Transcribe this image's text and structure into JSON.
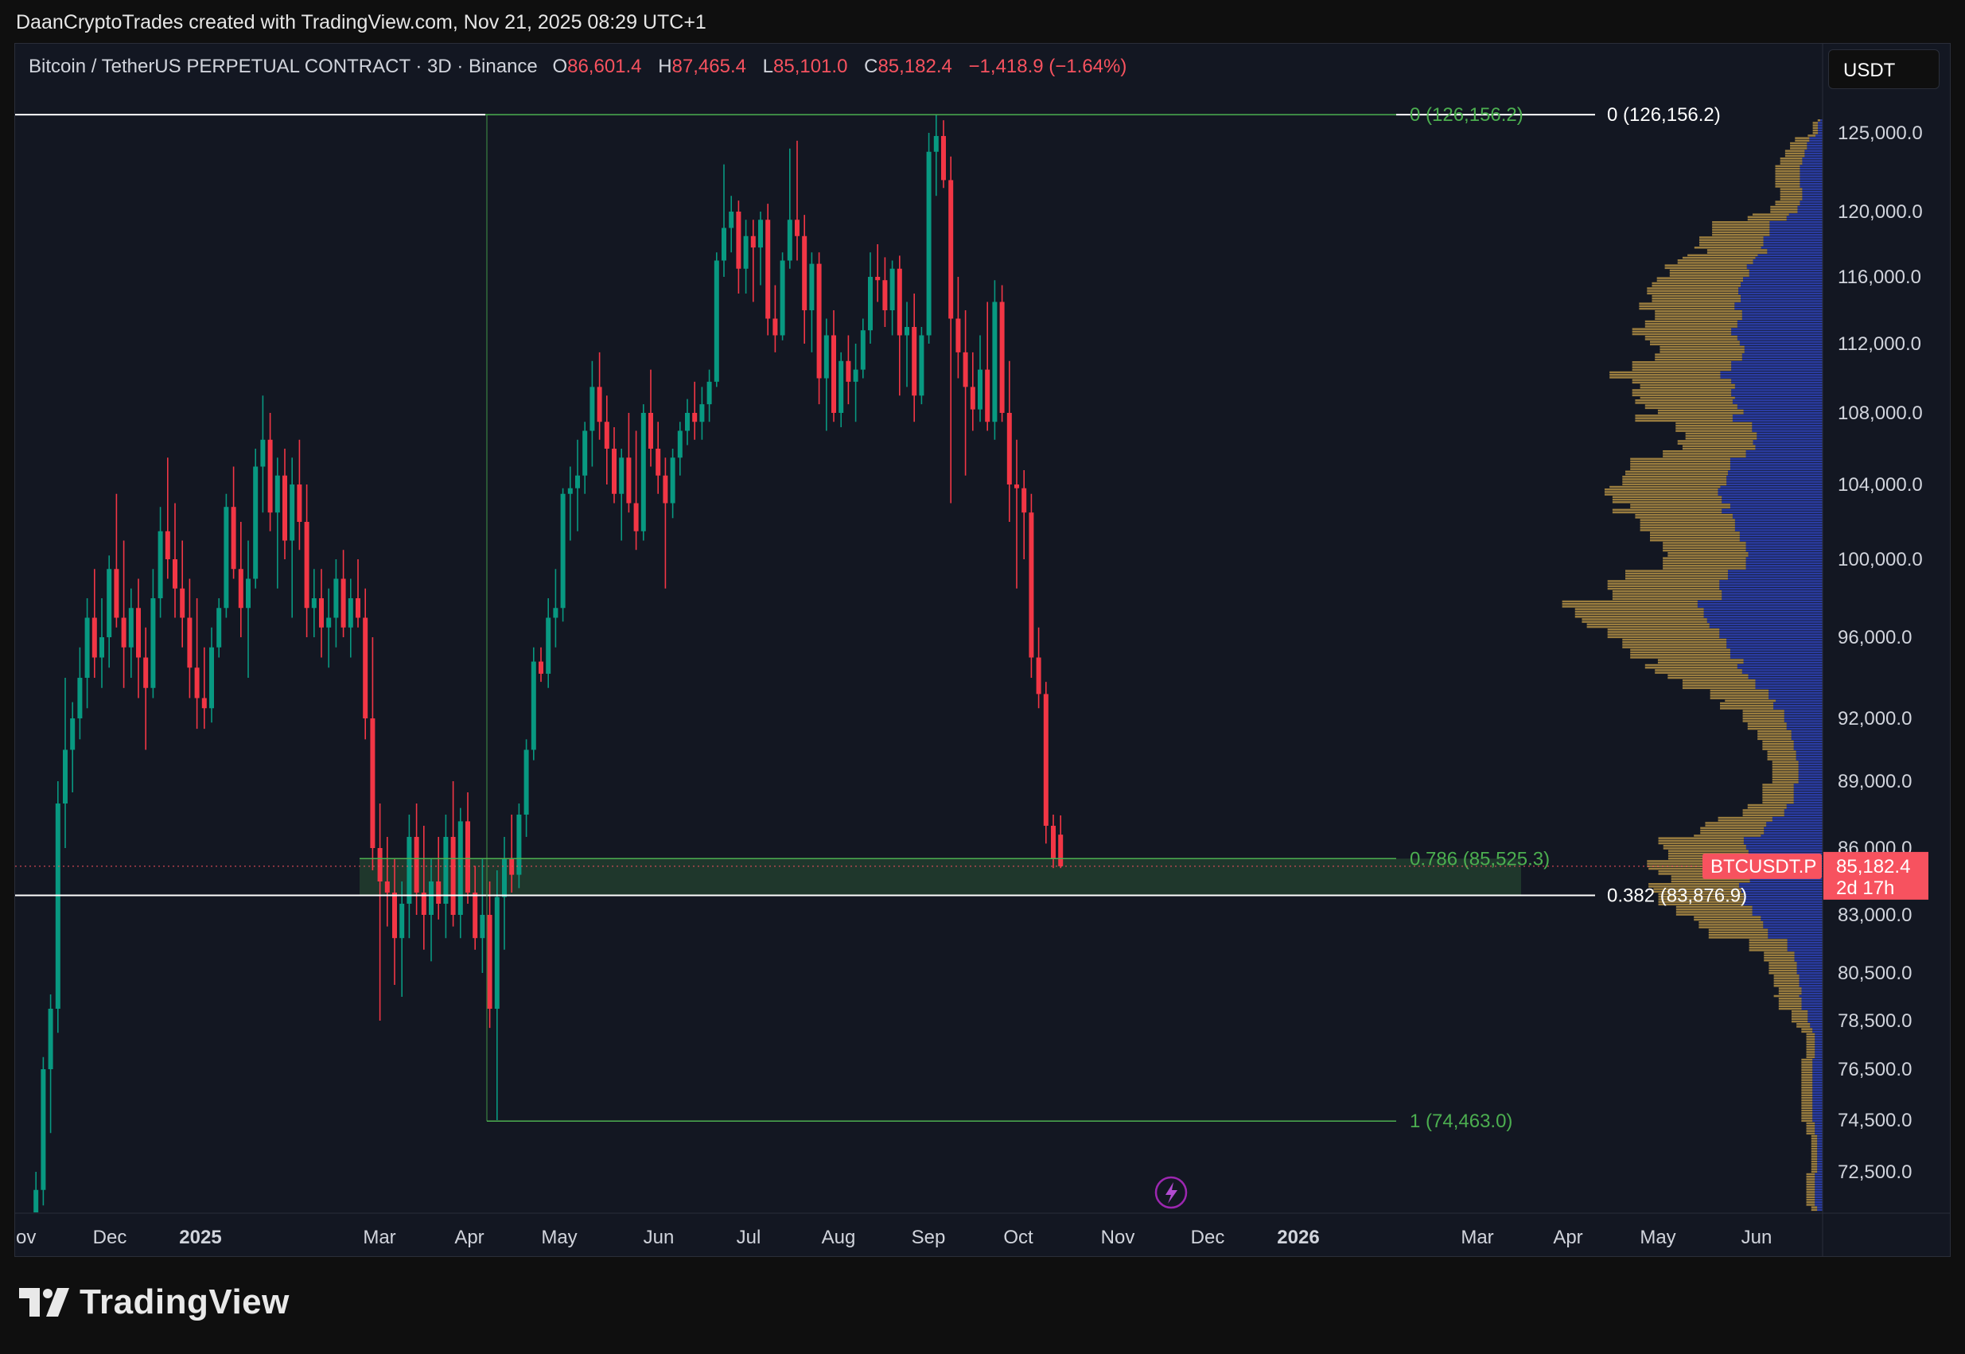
{
  "credit_line": "DaanCryptoTrades created with TradingView.com, Nov 21, 2025 08:29 UTC+1",
  "brand": "TradingView",
  "currency_button": "USDT",
  "symbol_label": "Bitcoin / TetherUS PERPETUAL CONTRACT · 3D · Binance",
  "ohlc": {
    "o_label": "O",
    "o": "86,601.4",
    "h_label": "H",
    "h": "87,465.4",
    "l_label": "L",
    "l": "85,101.0",
    "c_label": "C",
    "c": "85,182.4",
    "change": "−1,418.9 (−1.64%)"
  },
  "colors": {
    "up": "#089981",
    "down": "#f23645",
    "fib": "#4caf50",
    "profile_up": "#c8a04a",
    "profile_down": "#2f43b8",
    "price_tag": "#f7525f"
  },
  "chart_data": {
    "type": "candlestick",
    "timeframe": "3D",
    "ylim": [
      71500,
      127500
    ],
    "y_ticks": [
      "125,000.0",
      "120,000.0",
      "116,000.0",
      "112,000.0",
      "108,000.0",
      "104,000.0",
      "100,000.0",
      "96,000.0",
      "92,000.0",
      "89,000.0",
      "86,000.0",
      "83,000.0",
      "80,500.0",
      "78,500.0",
      "76,500.0",
      "74,500.0",
      "72,500.0"
    ],
    "y_tick_values": [
      125000,
      120000,
      116000,
      112000,
      108000,
      104000,
      100000,
      96000,
      92000,
      89000,
      86000,
      83000,
      80500,
      78500,
      76500,
      74500,
      72500
    ],
    "x_ticks": [
      "ov",
      "Dec",
      "2025",
      "Mar",
      "Apr",
      "May",
      "Jun",
      "Jul",
      "Aug",
      "Sep",
      "Oct",
      "Nov",
      "Dec",
      "2026",
      "Mar",
      "Apr",
      "May",
      "Jun"
    ],
    "x_tick_bold": [
      false,
      false,
      true,
      false,
      false,
      false,
      false,
      false,
      false,
      false,
      false,
      false,
      false,
      true,
      false,
      false,
      false,
      false
    ],
    "current_price": {
      "symbol": "BTCUSDT.P",
      "value": "85,182.4",
      "countdown": "2d 17h",
      "price": 85182.4
    },
    "fib_levels": [
      {
        "label": "0 (126,156.2)",
        "price": 126156.2
      },
      {
        "label": "0.786 (85,525.3)",
        "price": 85525.3
      },
      {
        "label": "1 (74,463.0)",
        "price": 74463.0
      }
    ],
    "other_levels": [
      {
        "label": "0 (126,156.2)",
        "price": 126156.2
      },
      {
        "label": "0.382 (83,876.9)",
        "price": 83876.9
      }
    ],
    "candles": [
      [
        67800,
        69000,
        65000,
        68800
      ],
      [
        68800,
        72500,
        68200,
        71800
      ],
      [
        71800,
        77000,
        71200,
        76500
      ],
      [
        76500,
        79600,
        74000,
        79000
      ],
      [
        79000,
        89000,
        78000,
        88000
      ],
      [
        88000,
        94000,
        86000,
        90500
      ],
      [
        90500,
        92800,
        88500,
        92000
      ],
      [
        92000,
        95500,
        91000,
        94000
      ],
      [
        94000,
        98000,
        92500,
        97000
      ],
      [
        97000,
        99500,
        94000,
        95000
      ],
      [
        95000,
        98000,
        93500,
        96000
      ],
      [
        96000,
        100200,
        94500,
        99500
      ],
      [
        99500,
        103500,
        96500,
        97000
      ],
      [
        97000,
        101000,
        93500,
        95500
      ],
      [
        95500,
        98500,
        94000,
        97500
      ],
      [
        97500,
        99000,
        93000,
        95000
      ],
      [
        95000,
        96500,
        90500,
        93500
      ],
      [
        93500,
        99500,
        93000,
        98000
      ],
      [
        98000,
        102800,
        97000,
        101500
      ],
      [
        101500,
        105500,
        99000,
        100000
      ],
      [
        100000,
        103000,
        97000,
        98500
      ],
      [
        98500,
        101000,
        95500,
        97000
      ],
      [
        97000,
        99000,
        93000,
        94500
      ],
      [
        94500,
        98000,
        91500,
        93000
      ],
      [
        93000,
        95500,
        91500,
        92500
      ],
      [
        92500,
        96500,
        91800,
        95500
      ],
      [
        95500,
        98000,
        95000,
        97500
      ],
      [
        97500,
        103500,
        97000,
        102800
      ],
      [
        102800,
        105000,
        99000,
        99500
      ],
      [
        99500,
        102000,
        96000,
        97500
      ],
      [
        97500,
        101000,
        94000,
        99000
      ],
      [
        99000,
        106000,
        98500,
        105000
      ],
      [
        105000,
        109000,
        102500,
        106500
      ],
      [
        106500,
        108000,
        101500,
        102500
      ],
      [
        102500,
        105500,
        98500,
        104500
      ],
      [
        104500,
        106000,
        100000,
        101000
      ],
      [
        101000,
        105500,
        97000,
        104000
      ],
      [
        104000,
        106500,
        100500,
        102000
      ],
      [
        102000,
        104000,
        96000,
        97500
      ],
      [
        97500,
        99500,
        96000,
        98000
      ],
      [
        98000,
        99500,
        95000,
        96500
      ],
      [
        96500,
        98500,
        94500,
        97000
      ],
      [
        97000,
        100000,
        95500,
        99000
      ],
      [
        99000,
        100500,
        96000,
        96500
      ],
      [
        96500,
        99000,
        95000,
        98000
      ],
      [
        98000,
        100000,
        96500,
        97000
      ],
      [
        97000,
        98500,
        91000,
        92000
      ],
      [
        92000,
        96000,
        85000,
        86000
      ],
      [
        86000,
        88000,
        78500,
        84500
      ],
      [
        84500,
        86500,
        82500,
        84000
      ],
      [
        84000,
        85500,
        80000,
        82000
      ],
      [
        82000,
        84500,
        79500,
        83500
      ],
      [
        83500,
        87500,
        82000,
        86500
      ],
      [
        86500,
        88000,
        83000,
        84000
      ],
      [
        84000,
        87000,
        81500,
        83000
      ],
      [
        83000,
        85500,
        81000,
        84500
      ],
      [
        84500,
        86500,
        82800,
        83500
      ],
      [
        83500,
        87500,
        82000,
        86500
      ],
      [
        86500,
        89000,
        82500,
        83000
      ],
      [
        83000,
        87800,
        82000,
        87200
      ],
      [
        87200,
        88500,
        83500,
        84000
      ],
      [
        84000,
        85200,
        81500,
        82000
      ],
      [
        82000,
        85500,
        80500,
        83000
      ],
      [
        83000,
        84500,
        78200,
        79000
      ],
      [
        79000,
        85000,
        74500,
        83800
      ],
      [
        83800,
        86500,
        81500,
        85500
      ],
      [
        85500,
        87500,
        84000,
        84800
      ],
      [
        84800,
        88000,
        84200,
        87500
      ],
      [
        87500,
        91000,
        86500,
        90500
      ],
      [
        90500,
        95500,
        90000,
        94800
      ],
      [
        94800,
        95500,
        93800,
        94200
      ],
      [
        94200,
        98000,
        93500,
        97000
      ],
      [
        97000,
        99500,
        95500,
        97500
      ],
      [
        97500,
        103800,
        96800,
        103500
      ],
      [
        103500,
        105000,
        101000,
        103800
      ],
      [
        103800,
        106500,
        101500,
        104500
      ],
      [
        104500,
        107500,
        103500,
        107000
      ],
      [
        107000,
        111000,
        105000,
        109500
      ],
      [
        109500,
        111500,
        106500,
        107500
      ],
      [
        107500,
        109000,
        104000,
        106000
      ],
      [
        106000,
        107200,
        103000,
        103500
      ],
      [
        103500,
        106000,
        101000,
        105500
      ],
      [
        105500,
        108000,
        102500,
        103000
      ],
      [
        103000,
        107000,
        100500,
        101500
      ],
      [
        101500,
        108500,
        101000,
        108000
      ],
      [
        108000,
        110500,
        105000,
        106000
      ],
      [
        106000,
        107500,
        103500,
        104500
      ],
      [
        104500,
        105500,
        98500,
        103000
      ],
      [
        103000,
        106000,
        102200,
        105500
      ],
      [
        105500,
        107500,
        104500,
        107000
      ],
      [
        107000,
        108800,
        106200,
        108000
      ],
      [
        108000,
        109800,
        106500,
        107500
      ],
      [
        107500,
        109500,
        106500,
        108500
      ],
      [
        108500,
        110500,
        107500,
        109800
      ],
      [
        109800,
        117500,
        109500,
        117000
      ],
      [
        117000,
        123000,
        116000,
        119000
      ],
      [
        119000,
        121000,
        117500,
        120000
      ],
      [
        120000,
        120700,
        115000,
        116500
      ],
      [
        116500,
        119500,
        115000,
        118500
      ],
      [
        118500,
        119500,
        114500,
        117800
      ],
      [
        117800,
        120000,
        115500,
        119500
      ],
      [
        119500,
        120500,
        112500,
        113500
      ],
      [
        113500,
        115500,
        111500,
        112500
      ],
      [
        112500,
        117500,
        112200,
        117000
      ],
      [
        117000,
        124000,
        116500,
        119500
      ],
      [
        119500,
        124500,
        117000,
        118500
      ],
      [
        118500,
        119800,
        112000,
        114000
      ],
      [
        114000,
        117500,
        111500,
        116800
      ],
      [
        116800,
        117500,
        108500,
        110000
      ],
      [
        110000,
        113500,
        107000,
        112500
      ],
      [
        112500,
        114000,
        107500,
        108000
      ],
      [
        108000,
        111500,
        107200,
        111000
      ],
      [
        111000,
        112500,
        108500,
        109800
      ],
      [
        109800,
        112000,
        107500,
        110500
      ],
      [
        110500,
        113500,
        110000,
        112800
      ],
      [
        112800,
        117500,
        112000,
        116000
      ],
      [
        116000,
        118000,
        114500,
        115800
      ],
      [
        115800,
        117200,
        113000,
        114000
      ],
      [
        114000,
        117000,
        112500,
        116500
      ],
      [
        116500,
        117300,
        109000,
        112500
      ],
      [
        112500,
        114500,
        109500,
        113000
      ],
      [
        113000,
        115000,
        107500,
        109000
      ],
      [
        109000,
        113000,
        108500,
        112500
      ],
      [
        112500,
        125000,
        112000,
        123800
      ],
      [
        123800,
        126156,
        121000,
        124800
      ],
      [
        124800,
        125800,
        121500,
        122000
      ],
      [
        122000,
        123500,
        103000,
        113500
      ],
      [
        113500,
        116000,
        110000,
        111500
      ],
      [
        111500,
        114000,
        104500,
        109500
      ],
      [
        109500,
        111500,
        107000,
        108200
      ],
      [
        108200,
        112500,
        107500,
        110500
      ],
      [
        110500,
        114500,
        107000,
        107500
      ],
      [
        107500,
        115800,
        106500,
        114500
      ],
      [
        114500,
        115500,
        107500,
        108000
      ],
      [
        108000,
        111000,
        102000,
        104000
      ],
      [
        104000,
        106500,
        98500,
        103800
      ],
      [
        103800,
        104800,
        100000,
        102500
      ],
      [
        102500,
        103500,
        94000,
        95000
      ],
      [
        95000,
        96500,
        92500,
        93200
      ],
      [
        93200,
        93800,
        86200,
        87000
      ],
      [
        87000,
        87500,
        85101,
        85500
      ],
      [
        86601.4,
        87465.4,
        85101,
        85182.4
      ]
    ],
    "volume_profile_note": "visible range volume profile on right side"
  }
}
